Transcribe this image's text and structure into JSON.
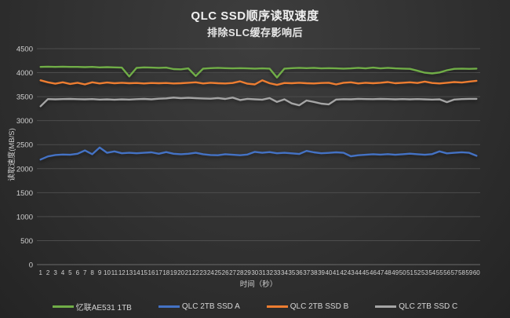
{
  "chart_data": {
    "type": "line",
    "title": "QLC SSD顺序读取速度",
    "subtitle": "排除SLC缓存影响后",
    "xlabel": "时间（秒）",
    "ylabel": "读取速度(MB/S)",
    "ylim": [
      0,
      4500
    ],
    "ytick_step": 500,
    "grid": true,
    "legend_position": "bottom",
    "background": "#303030",
    "gridline_color": "#4d4d4d",
    "axis_text_color": "#d0d0d0",
    "x": [
      1,
      2,
      3,
      4,
      5,
      6,
      7,
      8,
      9,
      10,
      11,
      12,
      13,
      14,
      15,
      16,
      17,
      18,
      19,
      20,
      21,
      22,
      23,
      24,
      25,
      26,
      27,
      28,
      29,
      30,
      31,
      32,
      33,
      34,
      35,
      36,
      37,
      38,
      39,
      40,
      41,
      42,
      43,
      44,
      45,
      46,
      47,
      48,
      49,
      50,
      51,
      52,
      53,
      54,
      55,
      56,
      57,
      58,
      59,
      60
    ],
    "series": [
      {
        "name": "忆联AE531 1TB",
        "color": "#70AD47",
        "values": [
          4120,
          4125,
          4120,
          4125,
          4120,
          4120,
          4115,
          4120,
          4110,
          4115,
          4110,
          4105,
          3920,
          4100,
          4110,
          4105,
          4100,
          4105,
          4075,
          4070,
          4090,
          3930,
          4085,
          4095,
          4100,
          4095,
          4090,
          4095,
          4090,
          4085,
          4090,
          4085,
          3900,
          4085,
          4095,
          4100,
          4095,
          4100,
          4090,
          4095,
          4090,
          4085,
          4090,
          4100,
          4090,
          4105,
          4090,
          4100,
          4090,
          4085,
          4080,
          4040,
          4000,
          3985,
          4005,
          4050,
          4080,
          4085,
          4080,
          4085
        ]
      },
      {
        "name": "QLC 2TB SSD A",
        "color": "#4472C4",
        "values": [
          2190,
          2255,
          2285,
          2295,
          2290,
          2310,
          2380,
          2300,
          2440,
          2330,
          2360,
          2320,
          2330,
          2320,
          2330,
          2340,
          2310,
          2345,
          2310,
          2300,
          2310,
          2330,
          2300,
          2285,
          2280,
          2300,
          2290,
          2280,
          2295,
          2350,
          2330,
          2345,
          2320,
          2330,
          2318,
          2305,
          2370,
          2340,
          2320,
          2328,
          2340,
          2330,
          2258,
          2280,
          2290,
          2300,
          2292,
          2302,
          2290,
          2300,
          2312,
          2300,
          2290,
          2302,
          2360,
          2318,
          2330,
          2342,
          2330,
          2268
        ]
      },
      {
        "name": "QLC 2TB SSD B",
        "color": "#ED7D31",
        "values": [
          3840,
          3800,
          3770,
          3800,
          3765,
          3790,
          3755,
          3800,
          3775,
          3795,
          3780,
          3790,
          3780,
          3785,
          3775,
          3785,
          3780,
          3785,
          3775,
          3780,
          3790,
          3800,
          3775,
          3790,
          3780,
          3775,
          3785,
          3820,
          3770,
          3755,
          3840,
          3780,
          3745,
          3785,
          3780,
          3790,
          3780,
          3775,
          3785,
          3790,
          3755,
          3790,
          3800,
          3775,
          3790,
          3780,
          3790,
          3805,
          3780,
          3790,
          3800,
          3785,
          3815,
          3785,
          3775,
          3790,
          3805,
          3795,
          3815,
          3830
        ]
      },
      {
        "name": "QLC 2TB SSD C",
        "color": "#A5A5A5",
        "values": [
          3300,
          3450,
          3445,
          3450,
          3452,
          3448,
          3445,
          3450,
          3440,
          3445,
          3438,
          3445,
          3440,
          3448,
          3452,
          3445,
          3458,
          3465,
          3480,
          3468,
          3475,
          3468,
          3462,
          3458,
          3470,
          3452,
          3480,
          3430,
          3455,
          3445,
          3438,
          3470,
          3390,
          3445,
          3360,
          3320,
          3420,
          3390,
          3355,
          3340,
          3440,
          3448,
          3445,
          3455,
          3450,
          3448,
          3452,
          3450,
          3445,
          3450,
          3445,
          3450,
          3444,
          3440,
          3445,
          3385,
          3440,
          3450,
          3455,
          3455
        ]
      }
    ]
  }
}
